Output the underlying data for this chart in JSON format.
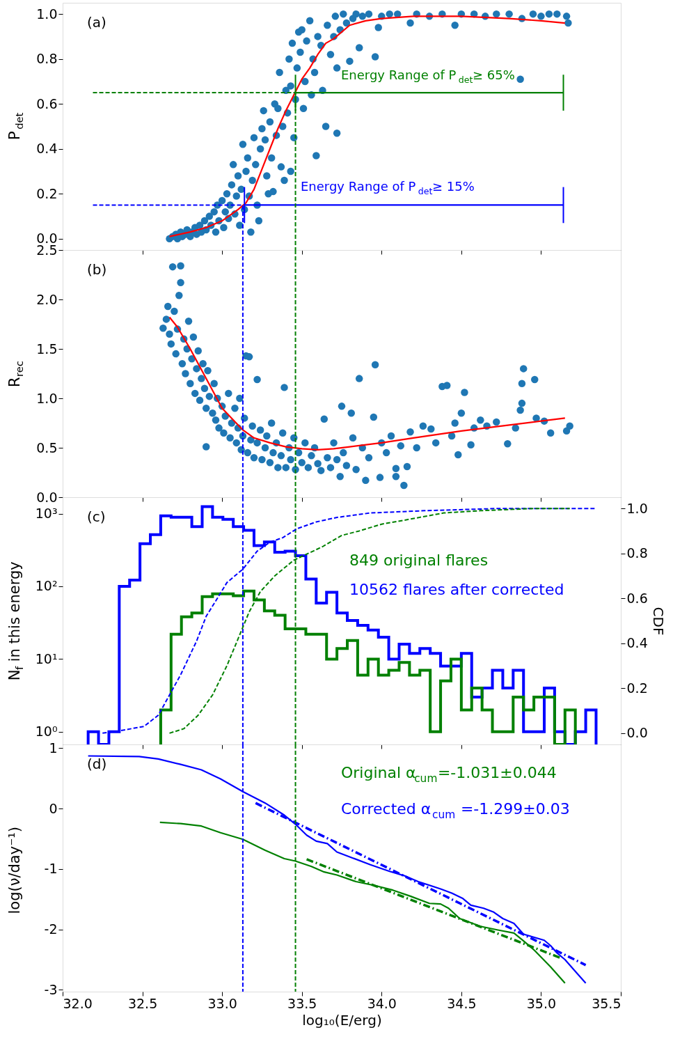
{
  "chart_data": [
    {
      "type": "scatter",
      "ylabel": "P$_{det}$",
      "annotations": [
        "(a)"
      ],
      "xlim": [
        32.0,
        35.5
      ],
      "ylim": [
        -0.05,
        1.05
      ],
      "xticks": [
        32.0,
        32.5,
        33.0,
        33.5,
        34.0,
        34.5,
        35.0,
        35.5
      ],
      "yticks": [
        {
          "value": 0,
          "label": "0.0"
        },
        {
          "value": 0.2,
          "label": "0.2"
        },
        {
          "value": 0.4,
          "label": "0.4"
        },
        {
          "value": 0.6,
          "label": "0.6"
        },
        {
          "value": 0.8,
          "label": "0.8"
        },
        {
          "value": 1.0,
          "label": "1.0"
        }
      ],
      "tick_labels": "y",
      "grid": false,
      "series": [
        {
          "marker": "circle",
          "color": "#1f77b4",
          "x": [
            32.67,
            32.69,
            32.71,
            32.72,
            32.74,
            32.75,
            32.77,
            32.78,
            32.8,
            32.81,
            32.83,
            32.84,
            32.86,
            32.87,
            32.89,
            32.9,
            32.92,
            32.93,
            32.95,
            32.96,
            32.97,
            32.98,
            33.0,
            33.01,
            33.02,
            33.03,
            33.04,
            33.05,
            33.06,
            33.07,
            33.08,
            33.09,
            33.1,
            33.11,
            33.12,
            33.13,
            33.14,
            33.15,
            33.16,
            33.17,
            33.18,
            33.19,
            33.2,
            33.21,
            33.22,
            33.23,
            33.24,
            33.25,
            33.26,
            33.27,
            33.28,
            33.29,
            33.3,
            33.31,
            33.32,
            33.33,
            33.34,
            33.35,
            33.36,
            33.37,
            33.38,
            33.39,
            33.4,
            33.41,
            33.42,
            33.43,
            33.43,
            33.44,
            33.45,
            33.46,
            33.47,
            33.48,
            33.49,
            33.5,
            33.51,
            33.52,
            33.53,
            33.55,
            33.56,
            33.57,
            33.58,
            33.59,
            33.6,
            33.62,
            33.63,
            33.65,
            33.66,
            33.68,
            33.7,
            33.71,
            33.72,
            33.72,
            33.74,
            33.76,
            33.78,
            33.8,
            33.82,
            33.84,
            33.86,
            33.88,
            33.92,
            33.96,
            33.98,
            34.0,
            34.05,
            34.1,
            34.18,
            34.22,
            34.3,
            34.38,
            34.46,
            34.5,
            34.58,
            34.65,
            34.72,
            34.8,
            34.87,
            34.88,
            34.95,
            35.0,
            35.05,
            35.1,
            35.16,
            35.17
          ],
          "values": [
            0.0,
            0.01,
            0.02,
            0.0,
            0.03,
            0.01,
            0.02,
            0.04,
            0.01,
            0.03,
            0.05,
            0.02,
            0.06,
            0.03,
            0.08,
            0.04,
            0.1,
            0.06,
            0.12,
            0.03,
            0.15,
            0.08,
            0.17,
            0.05,
            0.12,
            0.2,
            0.09,
            0.15,
            0.24,
            0.33,
            0.11,
            0.19,
            0.28,
            0.06,
            0.22,
            0.42,
            0.13,
            0.3,
            0.36,
            0.19,
            0.03,
            0.26,
            0.45,
            0.33,
            0.15,
            0.08,
            0.4,
            0.49,
            0.57,
            0.44,
            0.28,
            0.2,
            0.52,
            0.36,
            0.21,
            0.6,
            0.46,
            0.58,
            0.74,
            0.32,
            0.5,
            0.26,
            0.66,
            0.56,
            0.8,
            0.3,
            0.68,
            0.87,
            0.45,
            0.62,
            0.76,
            0.92,
            0.83,
            0.93,
            0.58,
            0.7,
            0.88,
            0.97,
            0.64,
            0.8,
            0.74,
            0.37,
            0.9,
            0.86,
            0.66,
            0.5,
            0.95,
            0.82,
            0.9,
            0.99,
            0.47,
            0.76,
            0.93,
            1.0,
            0.96,
            0.79,
            0.98,
            1.0,
            0.85,
            0.99,
            1.0,
            0.81,
            0.94,
            0.99,
            1.0,
            1.0,
            0.96,
            1.0,
            0.99,
            1.0,
            0.95,
            1.0,
            1.0,
            0.99,
            1.0,
            1.0,
            0.71,
            0.98,
            1.0,
            0.99,
            1.0,
            1.0,
            0.99,
            0.96
          ]
        },
        {
          "type": "line",
          "color": "#ff0000",
          "x": [
            32.67,
            32.8,
            32.9,
            33.0,
            33.1,
            33.15,
            33.2,
            33.25,
            33.3,
            33.35,
            33.4,
            33.45,
            33.5,
            33.55,
            33.6,
            33.65,
            33.7,
            33.8,
            33.9,
            34.0,
            34.2,
            34.5,
            34.8,
            35.0,
            35.15
          ],
          "values": [
            0.01,
            0.03,
            0.05,
            0.08,
            0.13,
            0.16,
            0.22,
            0.31,
            0.4,
            0.49,
            0.57,
            0.64,
            0.71,
            0.76,
            0.82,
            0.87,
            0.89,
            0.95,
            0.97,
            0.98,
            0.99,
            0.99,
            0.98,
            0.97,
            0.96
          ]
        },
        {
          "type": "line",
          "color": "#0000ff",
          "line_style": "dashed",
          "x": [
            32.19,
            33.13,
            33.13
          ],
          "values": [
            0.15,
            0.15,
            -0.05
          ]
        },
        {
          "type": "line",
          "color": "#0000ff",
          "line_style": "solid",
          "name": "Energy Range of P$_{det}$≥ 15%",
          "x": [
            33.14,
            35.14
          ],
          "values": [
            0.15,
            0.15
          ],
          "errors": [
            0.08,
            0.08
          ]
        },
        {
          "type": "line",
          "color": "#008000",
          "line_style": "dashed",
          "x": [
            32.19,
            33.46,
            33.46
          ],
          "values": [
            0.65,
            0.65,
            -0.05
          ]
        },
        {
          "type": "line",
          "color": "#008000",
          "line_style": "solid",
          "name": "Energy Range of P$_{det}$≥ 65%",
          "x": [
            33.46,
            35.14
          ],
          "values": [
            0.65,
            0.65
          ],
          "errors": [
            0.08,
            0.08
          ]
        }
      ]
    },
    {
      "type": "scatter",
      "ylabel": "R$_{rec}$",
      "annotations": [
        "(b)"
      ],
      "xlim": [
        32.0,
        35.5
      ],
      "ylim": [
        0,
        2.5
      ],
      "xticks": [
        32.0,
        32.5,
        33.0,
        33.5,
        34.0,
        34.5,
        35.0,
        35.5
      ],
      "yticks": [
        {
          "value": 0,
          "label": "0.0"
        },
        {
          "value": 0.5,
          "label": "0.5"
        },
        {
          "value": 1.0,
          "label": "1.0"
        },
        {
          "value": 1.5,
          "label": "1.5"
        },
        {
          "value": 2.0,
          "label": "2.0"
        },
        {
          "value": 2.5,
          "label": "2.5"
        }
      ],
      "tick_labels": "y",
      "grid": false,
      "ref_lines": [
        {
          "axis": "x",
          "value": 33.13,
          "color": "#0000ff",
          "line_style": "dashed"
        },
        {
          "axis": "x",
          "value": 33.46,
          "color": "#008000",
          "line_style": "dashed"
        }
      ],
      "series": [
        {
          "marker": "circle",
          "color": "#1f77b4",
          "x": [
            32.63,
            32.65,
            32.66,
            32.67,
            32.68,
            32.69,
            32.7,
            32.71,
            32.72,
            32.73,
            32.74,
            32.74,
            32.75,
            32.76,
            32.77,
            32.78,
            32.79,
            32.8,
            32.81,
            32.82,
            32.83,
            32.84,
            32.85,
            32.86,
            32.87,
            32.88,
            32.89,
            32.9,
            32.9,
            32.91,
            32.92,
            32.94,
            32.95,
            32.96,
            32.97,
            32.98,
            33.0,
            33.01,
            33.02,
            33.04,
            33.05,
            33.06,
            33.08,
            33.09,
            33.1,
            33.11,
            33.12,
            33.13,
            33.14,
            33.15,
            33.16,
            33.17,
            33.18,
            33.19,
            33.2,
            33.22,
            33.22,
            33.24,
            33.25,
            33.27,
            33.28,
            33.3,
            33.31,
            33.32,
            33.34,
            33.35,
            33.37,
            33.38,
            33.39,
            33.4,
            33.42,
            33.43,
            33.45,
            33.46,
            33.48,
            33.5,
            33.52,
            33.54,
            33.56,
            33.58,
            33.6,
            33.62,
            33.64,
            33.66,
            33.68,
            33.7,
            33.72,
            33.74,
            33.75,
            33.76,
            33.78,
            33.81,
            33.82,
            33.84,
            33.86,
            33.88,
            33.9,
            33.92,
            33.95,
            33.96,
            33.99,
            34.0,
            34.03,
            34.06,
            34.09,
            34.09,
            34.12,
            34.14,
            34.16,
            34.18,
            34.22,
            34.26,
            34.31,
            34.34,
            34.38,
            34.41,
            34.44,
            34.46,
            34.48,
            34.5,
            34.52,
            34.56,
            34.58,
            34.62,
            34.66,
            34.72,
            34.79,
            34.84,
            34.87,
            34.88,
            34.88,
            34.89,
            34.96,
            34.97,
            35.02,
            35.06,
            35.16,
            35.18
          ],
          "values": [
            1.71,
            1.8,
            1.93,
            1.65,
            1.55,
            2.33,
            1.88,
            1.45,
            1.7,
            2.04,
            2.17,
            2.34,
            1.35,
            1.6,
            1.25,
            1.5,
            1.78,
            1.15,
            1.4,
            1.62,
            1.05,
            1.3,
            1.48,
            0.98,
            1.2,
            1.35,
            1.1,
            0.51,
            0.9,
            1.28,
            1.02,
            0.85,
            1.15,
            0.78,
            1.0,
            0.7,
            0.92,
            0.65,
            0.82,
            1.05,
            0.6,
            0.75,
            0.9,
            0.55,
            0.7,
            1.0,
            0.48,
            0.62,
            0.8,
            1.43,
            0.45,
            1.42,
            0.58,
            0.72,
            0.4,
            1.19,
            0.55,
            0.68,
            0.38,
            0.5,
            0.62,
            0.35,
            0.75,
            0.45,
            0.55,
            0.3,
            0.42,
            0.65,
            1.11,
            0.3,
            0.5,
            0.38,
            0.6,
            0.28,
            0.45,
            0.35,
            0.55,
            0.3,
            0.42,
            0.5,
            0.34,
            0.27,
            0.79,
            0.4,
            0.3,
            0.55,
            0.38,
            0.21,
            0.92,
            0.45,
            0.32,
            0.85,
            0.6,
            0.28,
            1.2,
            0.5,
            0.17,
            0.4,
            0.81,
            1.34,
            0.2,
            0.55,
            0.45,
            0.62,
            0.21,
            0.29,
            0.52,
            0.12,
            0.31,
            0.66,
            0.5,
            0.72,
            0.69,
            0.55,
            1.12,
            1.13,
            0.62,
            0.75,
            0.43,
            0.85,
            1.06,
            0.53,
            0.7,
            0.78,
            0.72,
            0.76,
            0.54,
            0.7,
            0.88,
            0.95,
            1.15,
            1.3,
            1.19,
            0.8,
            0.77,
            0.65,
            0.67,
            0.72
          ]
        },
        {
          "type": "line",
          "color": "#ff0000",
          "x": [
            32.67,
            32.72,
            32.8,
            32.9,
            33.0,
            33.13,
            33.2,
            33.3,
            33.4,
            33.5,
            33.6,
            33.7,
            33.8,
            34.0,
            34.2,
            34.5,
            34.8,
            35.0,
            35.15
          ],
          "values": [
            1.82,
            1.72,
            1.5,
            1.2,
            0.9,
            0.68,
            0.6,
            0.55,
            0.51,
            0.49,
            0.48,
            0.49,
            0.51,
            0.55,
            0.6,
            0.67,
            0.73,
            0.77,
            0.8
          ]
        }
      ]
    },
    {
      "type": "histogram",
      "ylabel": "N$_{f}$ in this energy",
      "y2label": "CDF",
      "annotations": [
        "(c)"
      ],
      "xlim": [
        32.0,
        35.5
      ],
      "ylim": [
        0.67,
        1680
      ],
      "y2lim": [
        -0.05,
        1.05
      ],
      "log": "y",
      "xticks": [
        32.0,
        32.5,
        33.0,
        33.5,
        34.0,
        34.5,
        35.0,
        35.5
      ],
      "yticks": [
        {
          "value": 1,
          "label": "10⁰"
        },
        {
          "value": 10,
          "label": "10¹"
        },
        {
          "value": 100,
          "label": "10²"
        },
        {
          "value": 1000,
          "label": "10³"
        }
      ],
      "y2ticks": [
        {
          "value": 0,
          "label": "0.0"
        },
        {
          "value": 0.2,
          "label": "0.2"
        },
        {
          "value": 0.4,
          "label": "0.4"
        },
        {
          "value": 0.6,
          "label": "0.6"
        },
        {
          "value": 0.8,
          "label": "0.8"
        },
        {
          "value": 1.0,
          "label": "1.0"
        }
      ],
      "tick_labels": "y",
      "grid": false,
      "ref_lines": [
        {
          "axis": "x",
          "value": 33.13,
          "color": "#0000ff",
          "line_style": "dashed"
        },
        {
          "axis": "x",
          "value": 33.46,
          "color": "#008000",
          "line_style": "dashed"
        }
      ],
      "series": [
        {
          "color": "#0000ff",
          "name": "10562 flares after corrected",
          "bins": [
            32.16,
            32.225,
            32.29,
            32.355,
            32.42,
            32.485,
            32.55,
            32.615,
            32.68,
            32.745,
            32.81,
            32.875,
            32.94,
            33.005,
            33.07,
            33.135,
            33.2,
            33.265,
            33.33,
            33.395,
            33.46,
            33.525,
            33.59,
            33.655,
            33.72,
            33.785,
            33.85,
            33.915,
            33.98,
            34.045,
            34.11,
            34.175,
            34.24,
            34.305,
            34.37,
            34.435,
            34.5,
            34.565,
            34.63,
            34.695,
            34.76,
            34.825,
            34.89,
            34.955,
            35.02,
            35.085,
            35.15,
            35.215,
            35.28,
            35.345
          ],
          "values": [
            1,
            null,
            1,
            100,
            122,
            385,
            513,
            933,
            891,
            891,
            661,
            1245,
            891,
            832,
            661,
            589,
            363,
            407,
            295,
            305,
            263,
            126,
            59,
            83,
            43,
            34,
            29,
            25,
            20,
            10,
            16,
            12,
            14,
            12,
            8,
            8,
            12,
            3,
            4,
            7,
            4,
            7,
            1,
            1,
            4,
            1,
            null,
            1,
            2
          ]
        },
        {
          "color": "#008000",
          "name": "849 original flares",
          "bins": [
            32.615,
            32.68,
            32.745,
            32.81,
            32.875,
            32.94,
            33.005,
            33.07,
            33.135,
            33.2,
            33.265,
            33.33,
            33.395,
            33.46,
            33.525,
            33.59,
            33.655,
            33.72,
            33.785,
            33.85,
            33.915,
            33.98,
            34.045,
            34.11,
            34.175,
            34.24,
            34.305,
            34.37,
            34.435,
            34.5,
            34.565,
            34.63,
            34.695,
            34.76,
            34.825,
            34.89,
            34.955,
            35.02,
            35.085,
            35.15,
            35.215
          ],
          "values": [
            2,
            22,
            38,
            43,
            72,
            79,
            79,
            74,
            86,
            65,
            46,
            40,
            26,
            26,
            22,
            22,
            10,
            14,
            18,
            6,
            10,
            6,
            7,
            9,
            6,
            7,
            1,
            5,
            10,
            2,
            4,
            2,
            1,
            1,
            3,
            2,
            3,
            3,
            null,
            2
          ]
        },
        {
          "type": "line",
          "axis": "y2",
          "color": "#0000ff",
          "line_style": "dashed",
          "x": [
            32.25,
            32.35,
            32.51,
            32.6,
            32.67,
            32.74,
            32.78,
            32.84,
            32.9,
            32.97,
            33.03,
            33.13,
            33.22,
            33.3,
            33.38,
            33.47,
            33.59,
            33.72,
            33.93,
            34.27,
            34.74,
            35.34
          ],
          "values": [
            0.0,
            0.01,
            0.03,
            0.08,
            0.17,
            0.26,
            0.32,
            0.41,
            0.52,
            0.6,
            0.67,
            0.73,
            0.81,
            0.85,
            0.87,
            0.91,
            0.94,
            0.96,
            0.98,
            0.99,
            1.0,
            1.0
          ]
        },
        {
          "type": "line",
          "axis": "y2",
          "color": "#008000",
          "line_style": "dashed",
          "x": [
            32.67,
            32.76,
            32.85,
            32.94,
            33.03,
            33.1,
            33.17,
            33.24,
            33.33,
            33.45,
            33.54,
            33.63,
            33.75,
            33.86,
            34.0,
            34.16,
            34.39,
            34.62,
            34.96,
            35.18
          ],
          "values": [
            0.0,
            0.02,
            0.08,
            0.17,
            0.3,
            0.42,
            0.54,
            0.63,
            0.7,
            0.77,
            0.8,
            0.83,
            0.88,
            0.9,
            0.93,
            0.95,
            0.98,
            0.99,
            1.0,
            1.0
          ]
        }
      ]
    },
    {
      "type": "line",
      "xlabel": "log₁₀(E/erg)",
      "ylabel": "log(ν/day⁻¹)",
      "annotations": [
        "(d)"
      ],
      "xlim": [
        32.0,
        35.5
      ],
      "ylim": [
        -3.03,
        1.06
      ],
      "xticks": [
        {
          "value": 32,
          "label": "32.0"
        },
        {
          "value": 32.5,
          "label": "32.5"
        },
        {
          "value": 33,
          "label": "33.0"
        },
        {
          "value": 33.5,
          "label": "33.5"
        },
        {
          "value": 34,
          "label": "34.0"
        },
        {
          "value": 34.5,
          "label": "34.5"
        },
        {
          "value": 35,
          "label": "35.0"
        },
        {
          "value": 35.5,
          "label": "35.5"
        }
      ],
      "yticks": [
        -3,
        -2,
        -1,
        0,
        1
      ],
      "grid": false,
      "ref_lines": [
        {
          "axis": "x",
          "value": 33.13,
          "color": "#0000ff",
          "line_style": "dashed"
        },
        {
          "axis": "x",
          "value": 33.46,
          "color": "#008000",
          "line_style": "dashed"
        }
      ],
      "series": [
        {
          "color": "#0000ff",
          "x": [
            32.16,
            32.48,
            32.6,
            32.74,
            32.87,
            32.99,
            33.13,
            33.27,
            33.39,
            33.46,
            33.53,
            33.59,
            33.66,
            33.72,
            33.82,
            33.93,
            34.05,
            34.14,
            34.23,
            34.37,
            34.44,
            34.51,
            34.56,
            34.64,
            34.7,
            34.76,
            34.83,
            34.89,
            35.02,
            35.06,
            35.1,
            35.15,
            35.22,
            35.28
          ],
          "values": [
            0.87,
            0.86,
            0.82,
            0.73,
            0.64,
            0.49,
            0.28,
            0.09,
            -0.11,
            -0.26,
            -0.44,
            -0.54,
            -0.58,
            -0.72,
            -0.82,
            -0.93,
            -1.04,
            -1.11,
            -1.21,
            -1.33,
            -1.4,
            -1.49,
            -1.6,
            -1.65,
            -1.71,
            -1.82,
            -1.9,
            -2.08,
            -2.18,
            -2.27,
            -2.39,
            -2.5,
            -2.71,
            -2.89
          ]
        },
        {
          "color": "#008000",
          "x": [
            32.61,
            32.74,
            32.87,
            32.99,
            33.13,
            33.27,
            33.39,
            33.46,
            33.56,
            33.64,
            33.72,
            33.84,
            33.95,
            34.07,
            34.18,
            34.3,
            34.37,
            34.42,
            34.49,
            34.62,
            34.73,
            34.83,
            34.89,
            34.96,
            35.06,
            35.15
          ],
          "values": [
            -0.23,
            -0.25,
            -0.29,
            -0.4,
            -0.51,
            -0.69,
            -0.83,
            -0.87,
            -0.96,
            -1.05,
            -1.1,
            -1.21,
            -1.27,
            -1.35,
            -1.45,
            -1.57,
            -1.58,
            -1.65,
            -1.82,
            -1.95,
            -2.01,
            -2.06,
            -2.19,
            -2.35,
            -2.62,
            -2.89
          ]
        },
        {
          "color": "#008000",
          "line_style": "dashdot",
          "name": "Original α$_{cum}$=-1.031±0.044",
          "x": [
            33.53,
            35.12
          ],
          "values": [
            -0.84,
            -2.47
          ]
        },
        {
          "color": "#0000ff",
          "line_style": "dashdot",
          "name": "Corrected α$_{cum}$ =-1.299±0.03",
          "x": [
            33.21,
            35.28
          ],
          "values": [
            0.09,
            -2.59
          ]
        }
      ]
    }
  ]
}
